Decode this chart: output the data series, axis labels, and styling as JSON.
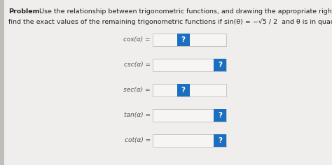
{
  "bg_color": "#d8d4d0",
  "panel_color": "#f0eeec",
  "title_bold": "Problem.",
  "title_line1": "  Use the relationship between trigonometric functions, and drawing the appropriate right-angle triangles, to",
  "title_line2": "find the exact values of the remaining trigonometric functions if sin(θ) = −√5 / 2  and θ is in quadrant IV.",
  "functions": [
    {
      "label": "cos(α) =",
      "btn_at_right": false
    },
    {
      "label": "csc(α) =",
      "btn_at_right": true
    },
    {
      "label": "sec(α) =",
      "btn_at_right": false
    },
    {
      "label": "tan(α) =",
      "btn_at_right": true
    },
    {
      "label": "cot(α) =",
      "btn_at_right": true
    }
  ],
  "btn_color": "#1a6fbe",
  "btn_text_color": "#ffffff",
  "box_color": "#f7f5f3",
  "box_border": "#c8c4c0",
  "label_color": "#555555",
  "left_bar_color": "#c0bcb8",
  "label_fontsize": 6.5,
  "problem_fontsize": 6.8
}
